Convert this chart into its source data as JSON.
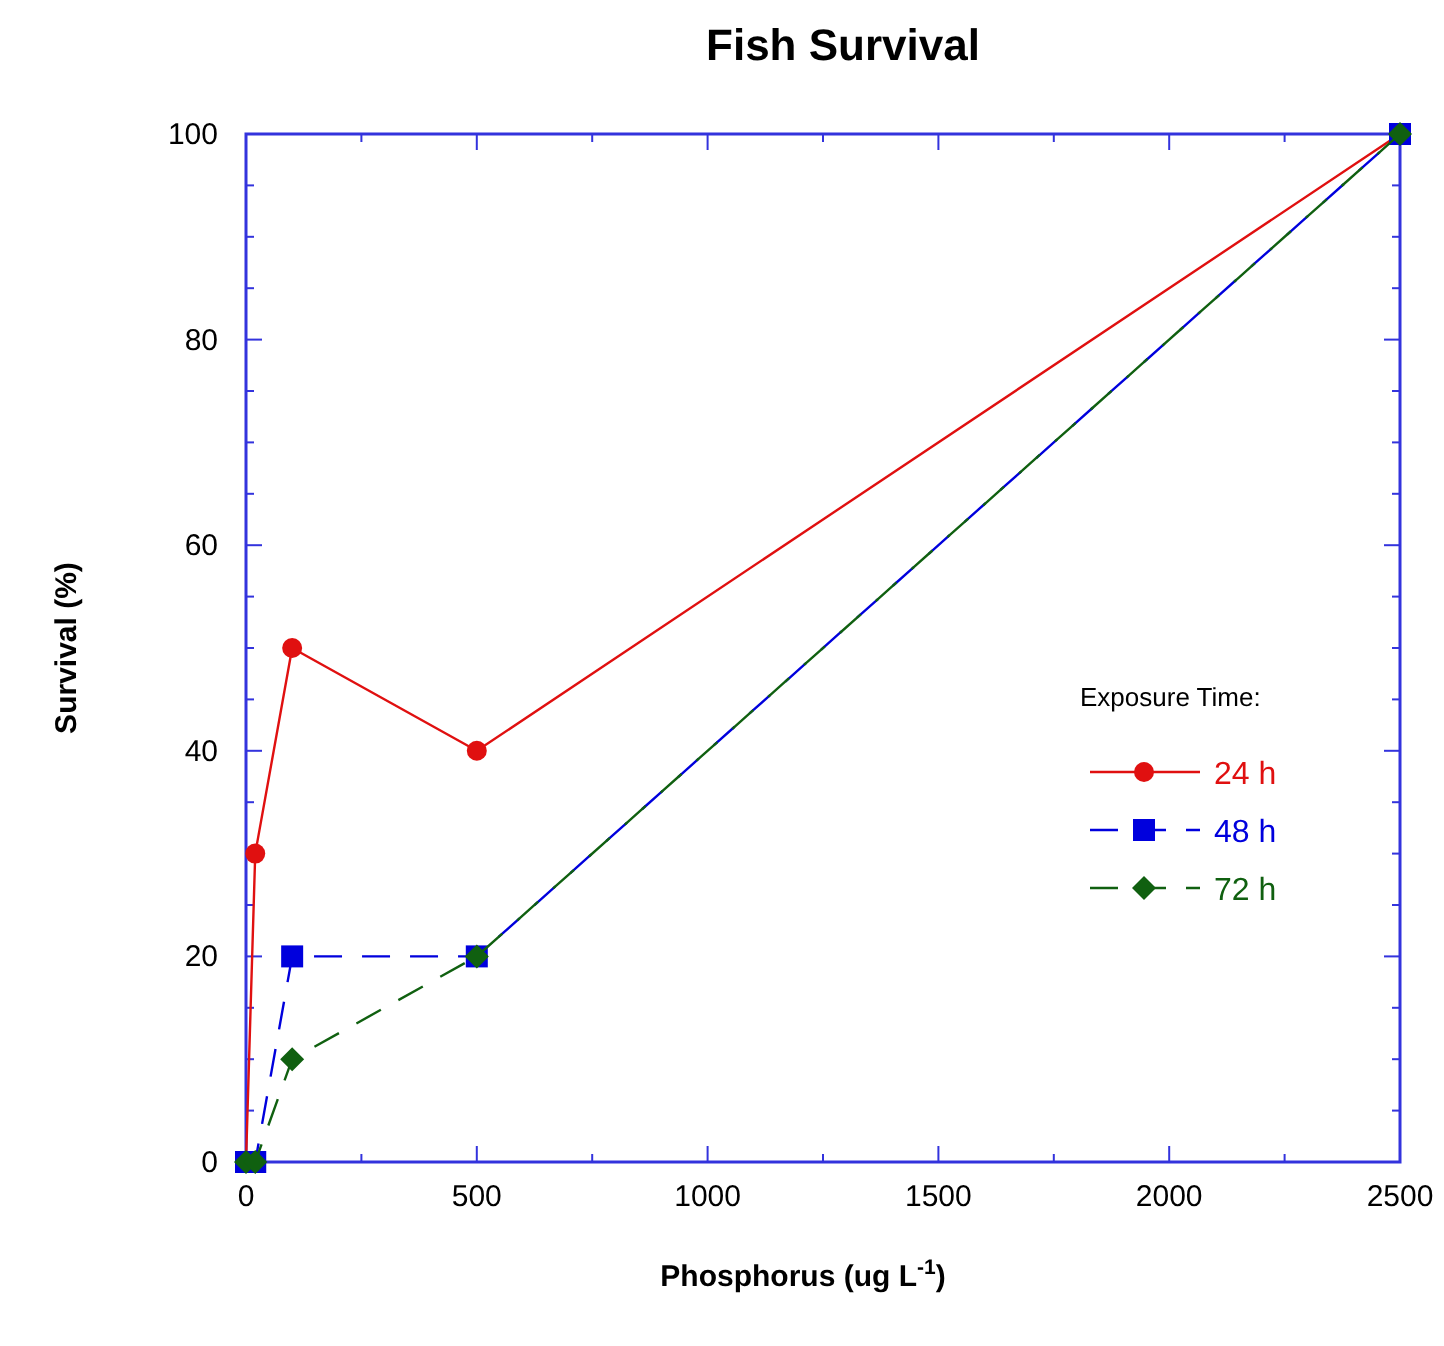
{
  "chart_data": {
    "type": "line",
    "title": "Fish Survival",
    "xlabel": "Phosphorus (ug L$^{-1}$)",
    "ylabel": "Survival (%)",
    "legend_title": "Exposure Time:",
    "legend": "right",
    "xlim": [
      0,
      2500
    ],
    "xticks": [
      0,
      500,
      1000,
      1500,
      2000,
      2500
    ],
    "ylim": [
      0,
      100
    ],
    "yticks": [
      0,
      20,
      40,
      60,
      80,
      100
    ],
    "grid": false,
    "series": [
      {
        "name": "24 h",
        "color": "#e01010",
        "x": [
          0,
          20,
          100,
          500,
          2500
        ],
        "values": [
          0,
          30,
          50,
          40,
          100
        ],
        "marker": "circle",
        "line_style": "solid"
      },
      {
        "name": "48 h",
        "color": "#0000dd",
        "x": [
          0,
          20,
          100,
          500,
          2500
        ],
        "values": [
          0,
          0,
          20,
          20,
          100
        ],
        "marker": "square",
        "line_style": "dashed"
      },
      {
        "name": "72 h",
        "color": "#106010",
        "x": [
          0,
          20,
          100,
          500,
          2500
        ],
        "values": [
          0,
          0,
          10,
          20,
          100
        ],
        "marker": "diamond",
        "line_style": "dashed"
      }
    ]
  }
}
